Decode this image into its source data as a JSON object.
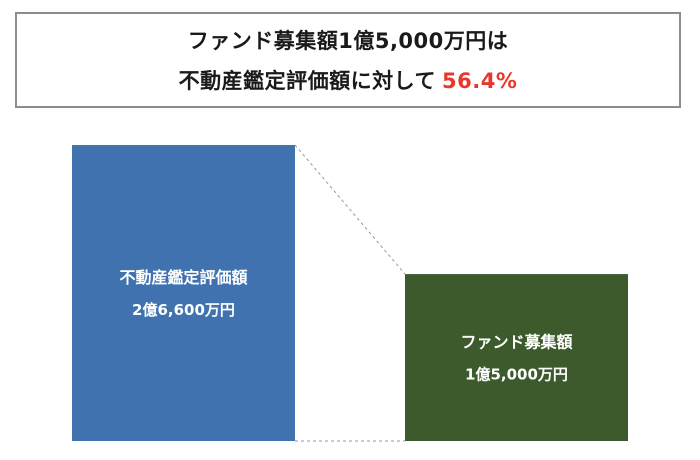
{
  "headline": {
    "line1": "ファンド募集額1億5,000万円は",
    "line2_prefix": "不動産鑑定評価額に対して",
    "line2_highlight": "56.4%"
  },
  "colors": {
    "appraisal_bar": "#3f72af",
    "fund_bar": "#3d5a2c",
    "highlight": "#e8382b",
    "connector": "#9a9a9a"
  },
  "chart_data": {
    "type": "bar",
    "categories": [
      "不動産鑑定評価額",
      "ファンド募集額"
    ],
    "value_labels": [
      "2億6,600万円",
      "1億5,000万円"
    ],
    "values": [
      266000000,
      150000000
    ],
    "ylim": [
      0,
      266000000
    ]
  }
}
